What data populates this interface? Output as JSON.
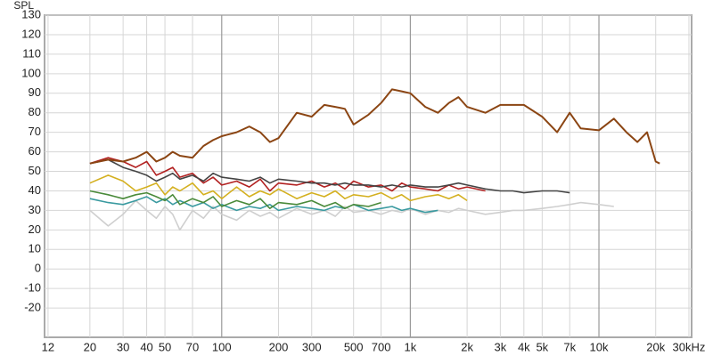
{
  "chart_data": {
    "type": "line",
    "y_axis_label": "SPL",
    "log_x": true,
    "grid": true,
    "xlim": [
      11.5,
      31000
    ],
    "ylim": [
      -35,
      130
    ],
    "xticks": [
      12,
      20,
      30,
      40,
      50,
      70,
      100,
      200,
      300,
      500,
      700,
      {
        "value": 1000,
        "label": "1k"
      },
      {
        "value": 2000,
        "label": "2k"
      },
      {
        "value": 3000,
        "label": "3k"
      },
      {
        "value": 4000,
        "label": "4k"
      },
      {
        "value": 5000,
        "label": "5k"
      },
      {
        "value": 7000,
        "label": "7k"
      },
      {
        "value": 10000,
        "label": "10k"
      },
      {
        "value": 20000,
        "label": "20k"
      },
      {
        "value": 30000,
        "label": "30kHz"
      }
    ],
    "yticks": [
      -20,
      -10,
      0,
      10,
      20,
      30,
      40,
      50,
      60,
      70,
      80,
      90,
      100,
      110,
      120,
      130
    ],
    "x": [
      20,
      25,
      30,
      35,
      40,
      45,
      50,
      55,
      60,
      70,
      80,
      90,
      100,
      120,
      140,
      160,
      180,
      200,
      250,
      300,
      350,
      400,
      450,
      500,
      600,
      700,
      800,
      900,
      1000,
      1200,
      1400,
      1600,
      1800,
      2000,
      2500,
      3000,
      3500,
      4000,
      5000,
      6000,
      7000,
      8000,
      10000,
      12000,
      14000,
      16000,
      18000,
      20000,
      21000
    ],
    "series": [
      {
        "color": "#cfcfcf",
        "values": [
          30,
          22,
          28,
          35,
          30,
          26,
          32,
          28,
          20,
          30,
          26,
          32,
          28,
          25,
          30,
          27,
          29,
          26,
          31,
          28,
          30,
          27,
          32,
          29,
          30,
          28,
          30,
          29,
          31,
          28,
          30,
          29,
          31,
          30,
          28,
          29,
          30,
          30,
          31,
          32,
          33,
          34,
          33,
          32,
          null,
          null,
          null,
          null,
          null
        ]
      },
      {
        "color": "#3a9aa0",
        "values": [
          36,
          34,
          33,
          35,
          37,
          34,
          36,
          33,
          35,
          32,
          34,
          31,
          33,
          30,
          32,
          31,
          33,
          30,
          32,
          31,
          30,
          32,
          31,
          33,
          30,
          31,
          32,
          30,
          31,
          29,
          30,
          null,
          null,
          null,
          null,
          null,
          null,
          null,
          null,
          null,
          null,
          null,
          null,
          null,
          null,
          null,
          null,
          null,
          null
        ]
      },
      {
        "color": "#4a8a3a",
        "values": [
          40,
          38,
          36,
          38,
          39,
          37,
          35,
          38,
          33,
          36,
          34,
          37,
          32,
          35,
          33,
          36,
          31,
          34,
          33,
          35,
          32,
          34,
          31,
          33,
          32,
          34,
          null,
          null,
          null,
          null,
          null,
          null,
          null,
          null,
          null,
          null,
          null,
          null,
          null,
          null,
          null,
          null,
          null,
          null,
          null,
          null,
          null,
          null,
          null
        ]
      },
      {
        "color": "#d4b020",
        "values": [
          44,
          48,
          45,
          40,
          42,
          44,
          38,
          42,
          40,
          44,
          38,
          40,
          36,
          42,
          37,
          40,
          38,
          41,
          36,
          39,
          37,
          40,
          36,
          38,
          37,
          39,
          36,
          38,
          35,
          37,
          38,
          36,
          38,
          35,
          null,
          null,
          null,
          null,
          null,
          null,
          null,
          null,
          null,
          null,
          null,
          null,
          null,
          null,
          null
        ]
      },
      {
        "color": "#b22222",
        "values": [
          54,
          57,
          55,
          52,
          55,
          48,
          50,
          52,
          47,
          49,
          44,
          47,
          43,
          45,
          42,
          46,
          40,
          44,
          43,
          45,
          42,
          44,
          41,
          45,
          42,
          43,
          40,
          44,
          42,
          41,
          40,
          43,
          41,
          42,
          40,
          null,
          null,
          null,
          null,
          null,
          null,
          null,
          null,
          null,
          null,
          null,
          null,
          null,
          null
        ]
      },
      {
        "color": "#444444",
        "values": [
          54,
          56,
          52,
          50,
          48,
          45,
          47,
          49,
          46,
          48,
          45,
          49,
          47,
          46,
          45,
          47,
          44,
          46,
          45,
          44,
          44,
          43,
          44,
          43,
          43,
          42,
          43,
          42,
          43,
          42,
          42,
          43,
          44,
          43,
          41,
          40,
          40,
          39,
          40,
          40,
          39,
          null,
          null,
          null,
          null,
          null,
          null,
          null,
          null
        ]
      },
      {
        "color": "#8b4513",
        "values": [
          54,
          56,
          55,
          57,
          60,
          55,
          57,
          60,
          58,
          57,
          63,
          66,
          68,
          70,
          73,
          70,
          65,
          67,
          80,
          78,
          84,
          83,
          82,
          74,
          79,
          85,
          92,
          91,
          90,
          83,
          80,
          85,
          88,
          83,
          80,
          84,
          84,
          84,
          78,
          70,
          80,
          72,
          71,
          77,
          70,
          65,
          70,
          55,
          54
        ]
      }
    ]
  }
}
